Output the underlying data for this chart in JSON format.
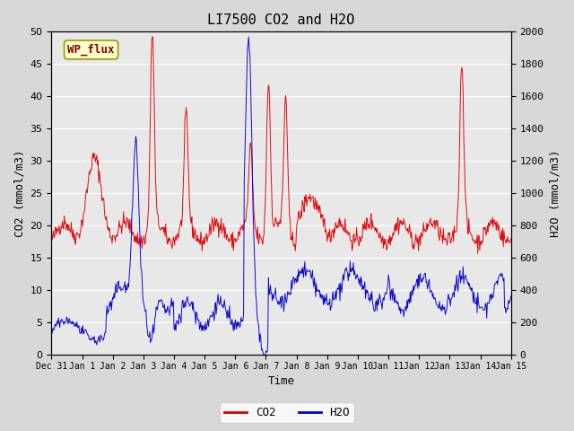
{
  "title": "LI7500 CO2 and H2O",
  "xlabel": "Time",
  "ylabel_left": "CO2 (mmol/m3)",
  "ylabel_right": "H2O (mmol/m3)",
  "ylim_left": [
    0,
    50
  ],
  "ylim_right": [
    0,
    2000
  ],
  "yticks_left": [
    0,
    5,
    10,
    15,
    20,
    25,
    30,
    35,
    40,
    45,
    50
  ],
  "yticks_right": [
    0,
    200,
    400,
    600,
    800,
    1000,
    1200,
    1400,
    1600,
    1800,
    2000
  ],
  "xtick_labels": [
    "Dec 31",
    "Jan 1",
    "Jan 2",
    "Jan 3",
    "Jan 4",
    "Jan 5",
    "Jan 6",
    "Jan 7",
    "Jan 8",
    "Jan 9",
    "Jan 10",
    "Jan 11",
    "Jan 12",
    "Jan 13",
    "Jan 14",
    "Jan 15"
  ],
  "co2_color": "#dd0000",
  "h2o_color": "#0000cc",
  "fig_bg_color": "#d8d8d8",
  "plot_bg_color": "#e8e8e8",
  "annotation_text": "WP_flux",
  "annotation_bg": "#ffffcc",
  "annotation_edge": "#cccc00",
  "legend_co2": "CO2",
  "legend_h2o": "H2O",
  "title_fontsize": 11,
  "axis_fontsize": 9,
  "tick_fontsize": 8,
  "legend_fontsize": 9
}
